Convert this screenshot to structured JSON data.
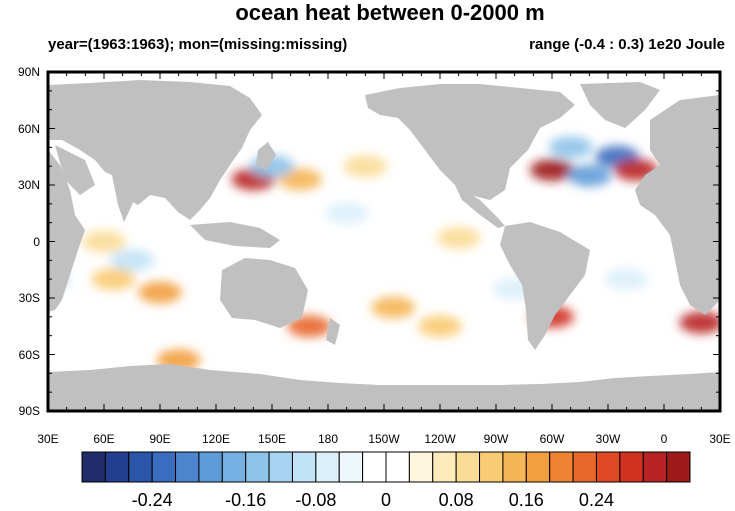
{
  "map": {
    "title": "ocean heat between 0-2000 m",
    "subtitle_left": "year=(1963:1963); mon=(missing:missing)",
    "subtitle_right": "range (-0.4 : 0.3) 1e20 Joule",
    "lat_ticks": [
      {
        "label": "90N",
        "lat": 90
      },
      {
        "label": "60N",
        "lat": 60
      },
      {
        "label": "30N",
        "lat": 30
      },
      {
        "label": "0",
        "lat": 0
      },
      {
        "label": "30S",
        "lat": -30
      },
      {
        "label": "60S",
        "lat": -60
      },
      {
        "label": "90S",
        "lat": -90
      }
    ],
    "lon_ticks": [
      {
        "label": "30E",
        "lon": 30
      },
      {
        "label": "60E",
        "lon": 60
      },
      {
        "label": "90E",
        "lon": 90
      },
      {
        "label": "120E",
        "lon": 120
      },
      {
        "label": "150E",
        "lon": 150
      },
      {
        "label": "180",
        "lon": 180
      },
      {
        "label": "150W",
        "lon": 210
      },
      {
        "label": "120W",
        "lon": 240
      },
      {
        "label": "90W",
        "lon": 270
      },
      {
        "label": "60W",
        "lon": 300
      },
      {
        "label": "30W",
        "lon": 330
      },
      {
        "label": "0",
        "lon": 360
      },
      {
        "label": "30E",
        "lon": 390
      }
    ],
    "land_color": "#c0c0c0",
    "ocean_color": "#ffffff",
    "anomalies": [
      {
        "lon": 140,
        "lat": 33,
        "value": 0.22
      },
      {
        "lon": 165,
        "lat": 33,
        "value": 0.1
      },
      {
        "lon": 150,
        "lat": 40,
        "value": -0.12
      },
      {
        "lon": 200,
        "lat": 40,
        "value": 0.06
      },
      {
        "lon": 300,
        "lat": 38,
        "value": 0.3
      },
      {
        "lon": 320,
        "lat": 35,
        "value": -0.16
      },
      {
        "lon": 335,
        "lat": 45,
        "value": -0.2
      },
      {
        "lon": 345,
        "lat": 38,
        "value": 0.22
      },
      {
        "lon": 310,
        "lat": 50,
        "value": -0.12
      },
      {
        "lon": 90,
        "lat": -27,
        "value": 0.12
      },
      {
        "lon": 75,
        "lat": -10,
        "value": -0.08
      },
      {
        "lon": 65,
        "lat": -20,
        "value": 0.08
      },
      {
        "lon": 170,
        "lat": -45,
        "value": 0.16
      },
      {
        "lon": 215,
        "lat": -35,
        "value": 0.1
      },
      {
        "lon": 240,
        "lat": -45,
        "value": 0.08
      },
      {
        "lon": 100,
        "lat": -63,
        "value": 0.12
      },
      {
        "lon": 300,
        "lat": -40,
        "value": 0.2
      },
      {
        "lon": 380,
        "lat": -43,
        "value": 0.22
      },
      {
        "lon": 250,
        "lat": 2,
        "value": 0.06
      },
      {
        "lon": 190,
        "lat": 15,
        "value": -0.06
      },
      {
        "lon": 60,
        "lat": 0,
        "value": 0.06
      },
      {
        "lon": 30,
        "lat": -20,
        "value": -0.08
      },
      {
        "lon": 340,
        "lat": -20,
        "value": -0.06
      },
      {
        "lon": 280,
        "lat": -25,
        "value": -0.06
      }
    ]
  },
  "colorbar": {
    "colors": [
      "#1f2e6b",
      "#243f8f",
      "#2a55a8",
      "#3a6cbf",
      "#4d84cc",
      "#5f9bd8",
      "#76b0e2",
      "#8ec3ea",
      "#a7d3f0",
      "#c2e2f6",
      "#dbeffa",
      "#eef7fc",
      "#ffffff",
      "#ffffff",
      "#fff6dd",
      "#fdebbb",
      "#fbdc97",
      "#f8cb74",
      "#f5b657",
      "#f29f3f",
      "#ee8432",
      "#e8672b",
      "#df4a25",
      "#d03222",
      "#b92222",
      "#9c1a1a"
    ],
    "tick_labels": [
      {
        "label": "-0.24",
        "index": 3
      },
      {
        "label": "-0.16",
        "index": 7
      },
      {
        "label": "-0.08",
        "index": 10
      },
      {
        "label": "0",
        "index": 13
      },
      {
        "label": "0.08",
        "index": 16
      },
      {
        "label": "0.16",
        "index": 19
      },
      {
        "label": "0.24",
        "index": 22
      }
    ]
  }
}
